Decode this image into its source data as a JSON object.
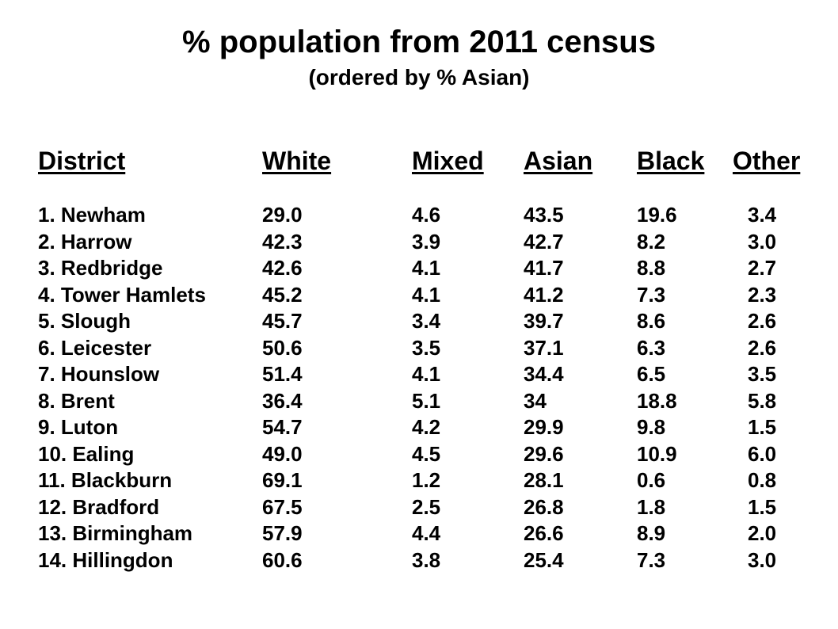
{
  "chart_data": {
    "type": "table",
    "title": "% population from 2011 census",
    "subtitle": "(ordered by % Asian)",
    "columns": [
      "District",
      "White",
      "Mixed",
      "Asian",
      "Black",
      "Other"
    ],
    "rows": [
      [
        "1. Newham",
        "29.0",
        "4.6",
        "43.5",
        "19.6",
        "3.4"
      ],
      [
        "2. Harrow",
        "42.3",
        "3.9",
        "42.7",
        "8.2",
        "3.0"
      ],
      [
        "3. Redbridge",
        "42.6",
        "4.1",
        "41.7",
        "8.8",
        "2.7"
      ],
      [
        "4. Tower Hamlets",
        "45.2",
        "4.1",
        "41.2",
        "7.3",
        "2.3"
      ],
      [
        "5. Slough",
        "45.7",
        "3.4",
        "39.7",
        "8.6",
        "2.6"
      ],
      [
        "6. Leicester",
        "50.6",
        "3.5",
        "37.1",
        "6.3",
        "2.6"
      ],
      [
        "7. Hounslow",
        "51.4",
        "4.1",
        "34.4",
        "6.5",
        "3.5"
      ],
      [
        "8. Brent",
        "36.4",
        "5.1",
        "34",
        "18.8",
        "5.8"
      ],
      [
        "9. Luton",
        "54.7",
        "4.2",
        "29.9",
        "9.8",
        "1.5"
      ],
      [
        "10. Ealing",
        "49.0",
        "4.5",
        "29.6",
        "10.9",
        "6.0"
      ],
      [
        "11. Blackburn",
        "69.1",
        "1.2",
        "28.1",
        "0.6",
        "0.8"
      ],
      [
        "12. Bradford",
        "67.5",
        "2.5",
        "26.8",
        "1.8",
        "1.5"
      ],
      [
        "13. Birmingham",
        "57.9",
        "4.4",
        "26.6",
        "8.9",
        "2.0"
      ],
      [
        "14. Hillingdon",
        "60.6",
        "3.8",
        "25.4",
        "7.3",
        "3.0"
      ]
    ]
  }
}
